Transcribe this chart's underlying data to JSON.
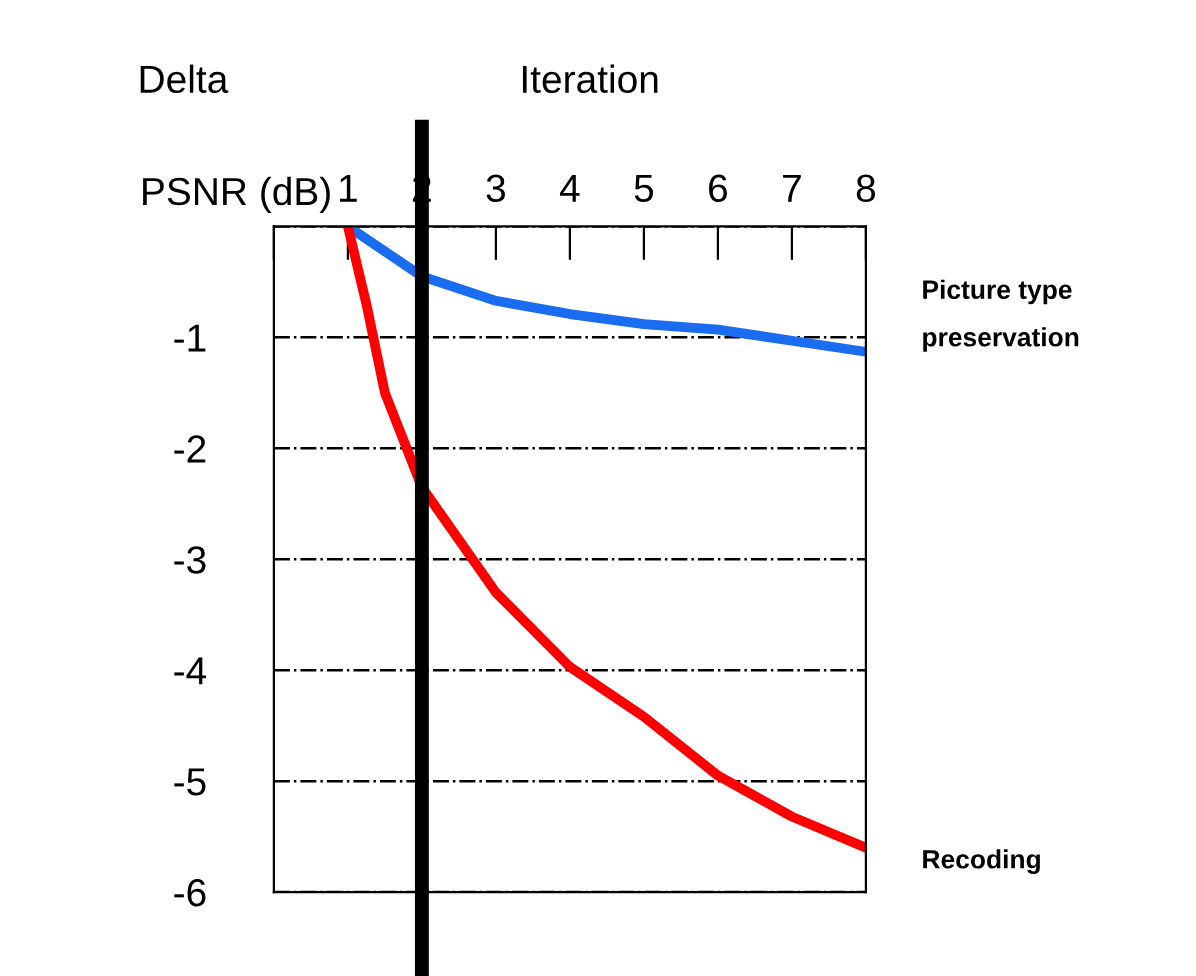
{
  "chart_data": {
    "type": "line",
    "xlabel": "Iteration",
    "ylabel": "Delta\nPSNR (dB)",
    "xlim": [
      0,
      8
    ],
    "xticks": [
      {
        "value": 0,
        "label": null
      },
      1,
      2,
      3,
      4,
      5,
      6,
      7,
      8
    ],
    "ylim": [
      -6,
      0
    ],
    "yticks": [
      {
        "value": 0,
        "label": null
      },
      -1,
      -2,
      -3,
      -4,
      -5,
      -6
    ],
    "grid": "y",
    "marker": "none",
    "line_style": "solid",
    "legend": false,
    "series": [
      {
        "name": "Picture type preservation",
        "color": "#1a6cf0",
        "x": [
          1,
          2,
          3,
          4,
          5,
          6,
          7,
          8
        ],
        "values": [
          0,
          -0.45,
          -0.67,
          -0.79,
          -0.88,
          -0.93,
          -1.03,
          -1.13
        ]
      },
      {
        "name": "Recoding",
        "color": "#ff0000",
        "x": [
          1,
          1.25,
          1.5,
          2,
          3,
          4,
          5,
          6,
          7,
          8
        ],
        "values": [
          0,
          -0.7,
          -1.5,
          -2.35,
          -3.3,
          -3.97,
          -4.42,
          -4.95,
          -5.32,
          -5.6
        ]
      }
    ],
    "ref_lines": [
      {
        "axis": "x",
        "value": 2,
        "color": "#000000",
        "line_style": "solid"
      }
    ]
  }
}
